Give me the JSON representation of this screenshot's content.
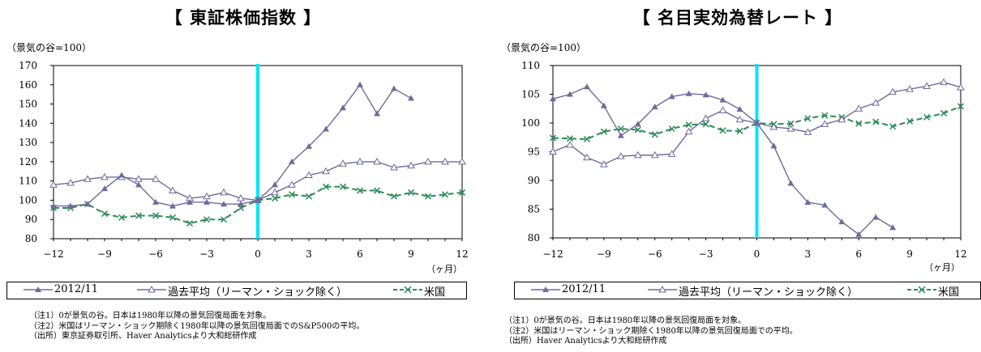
{
  "chart_data": [
    {
      "type": "line",
      "title": "【 東証株価指数 】",
      "unit_label": "（景気の谷=100）",
      "x_unit": "（ヶ月）",
      "x": [
        -12,
        -11,
        -10,
        -9,
        -8,
        -7,
        -6,
        -5,
        -4,
        -3,
        -2,
        -1,
        0,
        1,
        2,
        3,
        4,
        5,
        6,
        7,
        8,
        9,
        10,
        11,
        12
      ],
      "xticks": [
        -12,
        -9,
        -6,
        -3,
        0,
        3,
        6,
        9,
        12
      ],
      "ylim": [
        80,
        170
      ],
      "yticks": [
        80,
        90,
        100,
        110,
        120,
        130,
        140,
        150,
        160,
        170
      ],
      "series": [
        {
          "name": "2012/11",
          "color": "#6b6b9e",
          "marker": "filled-triangle",
          "values": [
            97,
            97,
            98,
            106,
            113,
            108,
            99,
            97,
            99,
            99,
            98,
            98,
            100,
            108,
            120,
            128,
            137,
            148,
            160,
            145,
            158,
            153,
            null,
            null,
            null
          ]
        },
        {
          "name": "過去平均（リーマン・ショック除く）",
          "color": "#6b6b9e",
          "marker": "open-triangle",
          "values": [
            108,
            109,
            111,
            112,
            112,
            111,
            111,
            105,
            101,
            102,
            104,
            101,
            100,
            104,
            108,
            113,
            115,
            119,
            120,
            120,
            117,
            118,
            120,
            120,
            120
          ]
        },
        {
          "name": "米国",
          "color": "#2e8b57",
          "marker": "x",
          "dashed": true,
          "values": [
            96,
            96,
            98,
            93,
            91,
            92,
            92,
            91,
            88,
            90,
            90,
            96,
            100,
            101,
            103,
            102,
            107,
            107,
            105,
            105,
            102,
            104,
            102,
            103,
            104
          ]
        }
      ],
      "notes": [
        "（注1）0が景気の谷。日本は1980年以降の景気回復局面を対象。",
        "（注2）米国はリーマン・ショック期除く1980年以降の景気回復局面でのS&P500の平均。",
        "（出所）東京証券取引所、Haver Analyticsより大和総研作成"
      ]
    },
    {
      "type": "line",
      "title": "【 名目実効為替レート 】",
      "unit_label": "（景気の谷=100）",
      "x_unit": "（ヶ月）",
      "x": [
        -12,
        -11,
        -10,
        -9,
        -8,
        -7,
        -6,
        -5,
        -4,
        -3,
        -2,
        -1,
        0,
        1,
        2,
        3,
        4,
        5,
        6,
        7,
        8,
        9,
        10,
        11,
        12
      ],
      "xticks": [
        -12,
        -9,
        -6,
        -3,
        0,
        3,
        6,
        9,
        12
      ],
      "ylim": [
        80,
        110
      ],
      "yticks": [
        80,
        85,
        90,
        95,
        100,
        105,
        110
      ],
      "series": [
        {
          "name": "2012/11",
          "color": "#6b6b9e",
          "marker": "filled-triangle",
          "values": [
            104.2,
            105,
            106.3,
            103,
            97.8,
            99.8,
            102.8,
            104.6,
            105.1,
            104.9,
            104,
            102.4,
            100,
            96,
            89.5,
            86.2,
            85.7,
            82.8,
            80.6,
            83.6,
            81.8,
            null,
            null,
            null,
            null
          ]
        },
        {
          "name": "過去平均（リーマン・ショック除く）",
          "color": "#6b6b9e",
          "marker": "open-triangle",
          "values": [
            95,
            96.2,
            94,
            92.8,
            94.2,
            94.4,
            94.4,
            94.6,
            98.5,
            100.8,
            102.2,
            100.6,
            100,
            99.3,
            99,
            98.4,
            99.8,
            100.6,
            102.5,
            103.5,
            105.4,
            105.9,
            106.4,
            107.1,
            106.2
          ]
        },
        {
          "name": "米国",
          "color": "#2e8b57",
          "marker": "x",
          "dashed": true,
          "values": [
            97.4,
            97.3,
            97.2,
            98.5,
            99,
            98.8,
            98,
            99,
            99.7,
            99.8,
            98.7,
            98.6,
            100,
            99.8,
            99.9,
            100.8,
            101.3,
            101,
            99.9,
            100.2,
            99.4,
            100.3,
            101,
            101.7,
            102.9
          ]
        }
      ],
      "notes": [
        "（注1）0が景気の谷。日本は1980年以降の景気回復局面を対象。",
        "（注2）米国はリーマン・ショック期除く1980年以降の景気回復局面での平均。",
        "（出所）Haver Analyticsより大和総研作成"
      ]
    }
  ]
}
